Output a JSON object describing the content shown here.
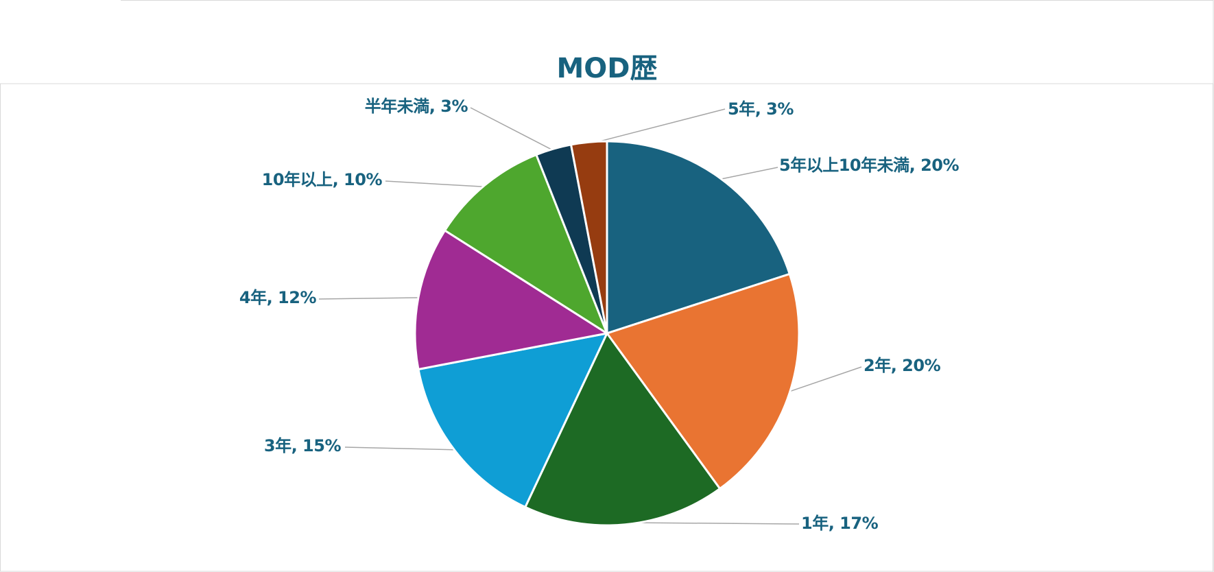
{
  "chart_data": {
    "type": "pie",
    "title": "MOD歴",
    "labels": [
      "5年以上10年未満",
      "2年",
      "1年",
      "3年",
      "4年",
      "10年以上",
      "半年未満",
      "5年"
    ],
    "values": [
      20,
      20,
      17,
      15,
      12,
      10,
      3,
      3
    ],
    "colors": [
      "#18627f",
      "#e97432",
      "#1d6a24",
      "#0f9ed5",
      "#a02b93",
      "#4ea72e",
      "#0f3a53",
      "#963c10"
    ],
    "title_color": "#18627f",
    "label_color": "#18627f",
    "leader_line_color": "#a6a6a6",
    "legend": "none",
    "data_label_format": "category, percent"
  }
}
